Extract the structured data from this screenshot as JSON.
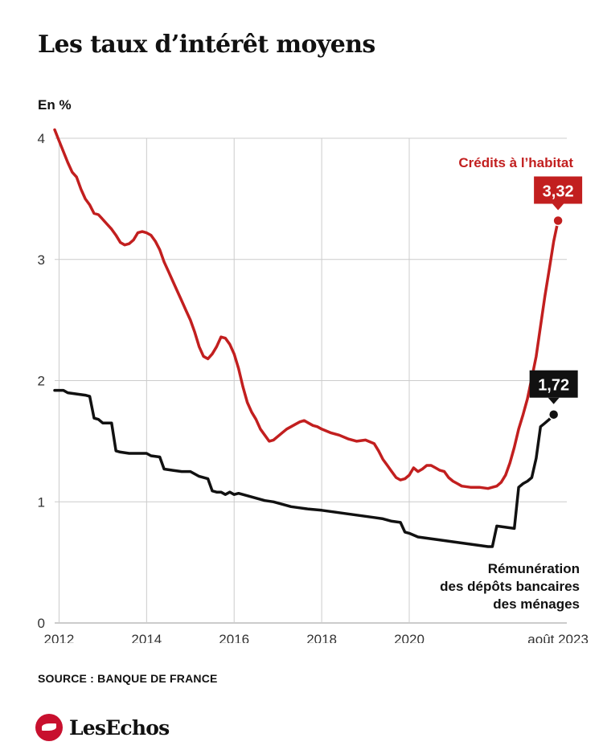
{
  "title": "Les taux d’intérêt moyens",
  "unit_label": "En %",
  "source": "SOURCE : BANQUE DE FRANCE",
  "brand": "LesEchos",
  "brand_icon": "les-echos-bird-icon",
  "colors": {
    "credit": "#c21f1f",
    "deposit": "#111111",
    "grid": "#cccccc"
  },
  "chart_data": {
    "type": "line",
    "ylim": [
      0,
      4
    ],
    "yticks": [
      "0",
      "1",
      "2",
      "3",
      "4"
    ],
    "xlim": [
      2011.9,
      2023.6
    ],
    "xticks": [
      {
        "value": 2012,
        "label": "2012"
      },
      {
        "value": 2014,
        "label": "2014"
      },
      {
        "value": 2016,
        "label": "2016"
      },
      {
        "value": 2018,
        "label": "2018"
      },
      {
        "value": 2020,
        "label": "2020"
      },
      {
        "value": 2023.4,
        "label": "août 2023"
      }
    ],
    "grid": true,
    "series": [
      {
        "name": "Crédits à l’habitat",
        "color": "#c21f1f",
        "end_label": "3,32",
        "points": [
          [
            2011.9,
            4.07
          ],
          [
            2012.0,
            3.98
          ],
          [
            2012.2,
            3.8
          ],
          [
            2012.3,
            3.72
          ],
          [
            2012.4,
            3.68
          ],
          [
            2012.5,
            3.58
          ],
          [
            2012.6,
            3.5
          ],
          [
            2012.7,
            3.45
          ],
          [
            2012.8,
            3.38
          ],
          [
            2012.9,
            3.37
          ],
          [
            2013.0,
            3.33
          ],
          [
            2013.1,
            3.29
          ],
          [
            2013.2,
            3.25
          ],
          [
            2013.3,
            3.2
          ],
          [
            2013.4,
            3.14
          ],
          [
            2013.5,
            3.12
          ],
          [
            2013.6,
            3.13
          ],
          [
            2013.7,
            3.16
          ],
          [
            2013.8,
            3.22
          ],
          [
            2013.9,
            3.23
          ],
          [
            2014.0,
            3.22
          ],
          [
            2014.1,
            3.2
          ],
          [
            2014.2,
            3.15
          ],
          [
            2014.3,
            3.08
          ],
          [
            2014.4,
            2.98
          ],
          [
            2014.5,
            2.9
          ],
          [
            2014.6,
            2.82
          ],
          [
            2014.7,
            2.74
          ],
          [
            2014.8,
            2.66
          ],
          [
            2014.9,
            2.58
          ],
          [
            2015.0,
            2.5
          ],
          [
            2015.1,
            2.4
          ],
          [
            2015.2,
            2.28
          ],
          [
            2015.3,
            2.2
          ],
          [
            2015.4,
            2.18
          ],
          [
            2015.5,
            2.22
          ],
          [
            2015.6,
            2.28
          ],
          [
            2015.7,
            2.36
          ],
          [
            2015.8,
            2.35
          ],
          [
            2015.9,
            2.3
          ],
          [
            2016.0,
            2.22
          ],
          [
            2016.1,
            2.1
          ],
          [
            2016.2,
            1.95
          ],
          [
            2016.3,
            1.82
          ],
          [
            2016.4,
            1.74
          ],
          [
            2016.5,
            1.68
          ],
          [
            2016.6,
            1.6
          ],
          [
            2016.7,
            1.55
          ],
          [
            2016.8,
            1.5
          ],
          [
            2016.9,
            1.51
          ],
          [
            2017.0,
            1.54
          ],
          [
            2017.1,
            1.57
          ],
          [
            2017.2,
            1.6
          ],
          [
            2017.3,
            1.62
          ],
          [
            2017.4,
            1.64
          ],
          [
            2017.5,
            1.66
          ],
          [
            2017.6,
            1.67
          ],
          [
            2017.7,
            1.65
          ],
          [
            2017.8,
            1.63
          ],
          [
            2017.9,
            1.62
          ],
          [
            2018.0,
            1.6
          ],
          [
            2018.2,
            1.57
          ],
          [
            2018.4,
            1.55
          ],
          [
            2018.6,
            1.52
          ],
          [
            2018.8,
            1.5
          ],
          [
            2019.0,
            1.51
          ],
          [
            2019.2,
            1.48
          ],
          [
            2019.3,
            1.42
          ],
          [
            2019.4,
            1.35
          ],
          [
            2019.5,
            1.3
          ],
          [
            2019.6,
            1.25
          ],
          [
            2019.7,
            1.2
          ],
          [
            2019.8,
            1.18
          ],
          [
            2019.9,
            1.19
          ],
          [
            2020.0,
            1.22
          ],
          [
            2020.1,
            1.28
          ],
          [
            2020.2,
            1.25
          ],
          [
            2020.3,
            1.27
          ],
          [
            2020.4,
            1.3
          ],
          [
            2020.5,
            1.3
          ],
          [
            2020.6,
            1.28
          ],
          [
            2020.7,
            1.26
          ],
          [
            2020.8,
            1.25
          ],
          [
            2020.9,
            1.2
          ],
          [
            2021.0,
            1.17
          ],
          [
            2021.1,
            1.15
          ],
          [
            2021.2,
            1.13
          ],
          [
            2021.4,
            1.12
          ],
          [
            2021.6,
            1.12
          ],
          [
            2021.8,
            1.11
          ],
          [
            2021.9,
            1.12
          ],
          [
            2022.0,
            1.13
          ],
          [
            2022.1,
            1.16
          ],
          [
            2022.2,
            1.22
          ],
          [
            2022.3,
            1.32
          ],
          [
            2022.4,
            1.45
          ],
          [
            2022.5,
            1.6
          ],
          [
            2022.6,
            1.72
          ],
          [
            2022.7,
            1.85
          ],
          [
            2022.8,
            2.02
          ],
          [
            2022.9,
            2.2
          ],
          [
            2023.0,
            2.45
          ],
          [
            2023.1,
            2.7
          ],
          [
            2023.2,
            2.92
          ],
          [
            2023.3,
            3.15
          ],
          [
            2023.4,
            3.32
          ]
        ]
      },
      {
        "name": "Rémunération des dépôts bancaires des ménages",
        "label_lines": [
          "Rémunération",
          "des dépôts bancaires",
          "des ménages"
        ],
        "color": "#111111",
        "end_label": "1,72",
        "points": [
          [
            2011.9,
            1.92
          ],
          [
            2012.1,
            1.92
          ],
          [
            2012.2,
            1.9
          ],
          [
            2012.4,
            1.89
          ],
          [
            2012.6,
            1.88
          ],
          [
            2012.7,
            1.87
          ],
          [
            2012.8,
            1.69
          ],
          [
            2012.9,
            1.68
          ],
          [
            2013.0,
            1.65
          ],
          [
            2013.2,
            1.65
          ],
          [
            2013.3,
            1.42
          ],
          [
            2013.4,
            1.41
          ],
          [
            2013.6,
            1.4
          ],
          [
            2013.8,
            1.4
          ],
          [
            2014.0,
            1.4
          ],
          [
            2014.1,
            1.38
          ],
          [
            2014.3,
            1.37
          ],
          [
            2014.4,
            1.27
          ],
          [
            2014.6,
            1.26
          ],
          [
            2014.8,
            1.25
          ],
          [
            2015.0,
            1.25
          ],
          [
            2015.2,
            1.21
          ],
          [
            2015.4,
            1.19
          ],
          [
            2015.5,
            1.09
          ],
          [
            2015.6,
            1.08
          ],
          [
            2015.7,
            1.08
          ],
          [
            2015.8,
            1.06
          ],
          [
            2015.9,
            1.08
          ],
          [
            2016.0,
            1.06
          ],
          [
            2016.1,
            1.07
          ],
          [
            2016.3,
            1.05
          ],
          [
            2016.5,
            1.03
          ],
          [
            2016.7,
            1.01
          ],
          [
            2016.9,
            1.0
          ],
          [
            2017.0,
            0.99
          ],
          [
            2017.2,
            0.97
          ],
          [
            2017.3,
            0.96
          ],
          [
            2017.5,
            0.95
          ],
          [
            2017.7,
            0.94
          ],
          [
            2018.0,
            0.93
          ],
          [
            2018.2,
            0.92
          ],
          [
            2018.4,
            0.91
          ],
          [
            2018.6,
            0.9
          ],
          [
            2018.8,
            0.89
          ],
          [
            2019.0,
            0.88
          ],
          [
            2019.2,
            0.87
          ],
          [
            2019.4,
            0.86
          ],
          [
            2019.6,
            0.84
          ],
          [
            2019.8,
            0.83
          ],
          [
            2019.9,
            0.75
          ],
          [
            2020.0,
            0.74
          ],
          [
            2020.2,
            0.71
          ],
          [
            2020.4,
            0.7
          ],
          [
            2020.6,
            0.69
          ],
          [
            2020.8,
            0.68
          ],
          [
            2021.0,
            0.67
          ],
          [
            2021.2,
            0.66
          ],
          [
            2021.4,
            0.65
          ],
          [
            2021.6,
            0.64
          ],
          [
            2021.8,
            0.63
          ],
          [
            2021.9,
            0.63
          ],
          [
            2022.0,
            0.8
          ],
          [
            2022.2,
            0.79
          ],
          [
            2022.4,
            0.78
          ],
          [
            2022.5,
            1.12
          ],
          [
            2022.6,
            1.15
          ],
          [
            2022.7,
            1.17
          ],
          [
            2022.8,
            1.2
          ],
          [
            2022.9,
            1.36
          ],
          [
            2023.0,
            1.62
          ],
          [
            2023.1,
            1.65
          ],
          [
            2023.2,
            1.68
          ],
          [
            2023.3,
            1.72
          ]
        ]
      }
    ]
  }
}
